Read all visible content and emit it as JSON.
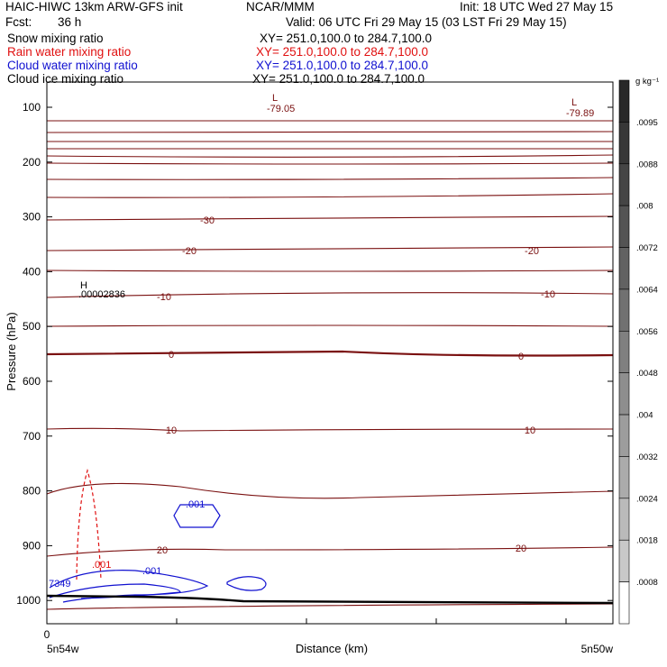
{
  "header": {
    "title": "HAIC-HIWC 13km ARW-GFS init",
    "org": "NCAR/MMM",
    "init": "Init: 18 UTC Wed 27 May 15",
    "fcst_label": "Fcst:",
    "fcst_value": "36 h",
    "valid": "Valid: 06 UTC Fri 29 May 15 (03 LST Fri 29 May 15)"
  },
  "fields": [
    {
      "name": "Snow mixing ratio",
      "xy": "XY= 251.0,100.0 to 284.7,100.0",
      "color": "#000000"
    },
    {
      "name": "Rain water mixing ratio",
      "xy": "XY= 251.0,100.0 to 284.7,100.0",
      "color": "#e01010"
    },
    {
      "name": "Cloud water mixing ratio",
      "xy": "XY= 251.0,100.0 to 284.7,100.0",
      "color": "#1010d0"
    },
    {
      "name": "Cloud ice mixing ratio",
      "xy": "XY= 251.0,100.0 to 284.7,100.0",
      "color": "#000000"
    }
  ],
  "chart_data": {
    "type": "contour cross-section",
    "ylabel": "Pressure (hPa)",
    "xlabel": "Distance (km)",
    "y_ticks": [
      "100",
      "200",
      "300",
      "400",
      "500",
      "600",
      "700",
      "800",
      "900",
      "1000"
    ],
    "x_tick_label": "0",
    "x_left_label": "5n54w",
    "x_right_label": "5n50w",
    "colorbar": {
      "unit": "g kg⁻¹",
      "labels": [
        ".0095",
        ".0088",
        ".008",
        ".0072",
        ".0064",
        ".0056",
        ".0048",
        ".004",
        ".0032",
        ".0024",
        ".0018",
        ".0008"
      ]
    },
    "temperature_contour_labels": [
      "-30",
      "-20",
      "-20",
      "-10",
      "-10",
      "0",
      "0",
      "10",
      "10",
      "20",
      "20"
    ],
    "extrema": [
      {
        "marker": "L",
        "value": "-79.05"
      },
      {
        "marker": "L",
        "value": "-79.89"
      },
      {
        "marker": "H",
        "value": ".00002836"
      }
    ],
    "cloud_labels": [
      ".001",
      ".001"
    ],
    "rain_label": ".001",
    "edge_label": "7349",
    "colors": {
      "temperature": "#7a1010",
      "rain": "#e01010",
      "cloud": "#1010d0",
      "terrain": "#000000"
    }
  }
}
